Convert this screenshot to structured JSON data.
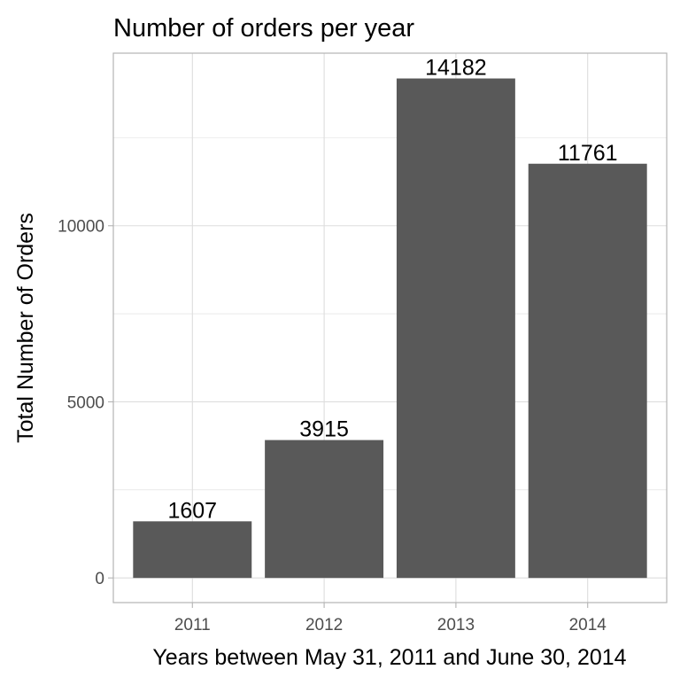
{
  "chart_data": {
    "type": "bar",
    "title": "Number of orders per year",
    "xlabel": "Years between May 31, 2011 and  June 30, 2014",
    "ylabel": "Total Number of Orders",
    "categories": [
      "2011",
      "2012",
      "2013",
      "2014"
    ],
    "values": [
      1607,
      3915,
      14182,
      11761
    ],
    "data_labels": [
      "1607",
      "3915",
      "14182",
      "11761"
    ],
    "yticks": [
      0,
      5000,
      10000
    ],
    "ytick_labels": [
      "0",
      "5000",
      "10000"
    ],
    "ylim": [
      -700,
      14900
    ],
    "grid": true,
    "legend": "none",
    "colors": {
      "bar": "#595959",
      "grid": "#dddddd",
      "panel_border": "#b3b3b3",
      "tick_text": "#4d4d4d",
      "text": "#000000"
    }
  }
}
